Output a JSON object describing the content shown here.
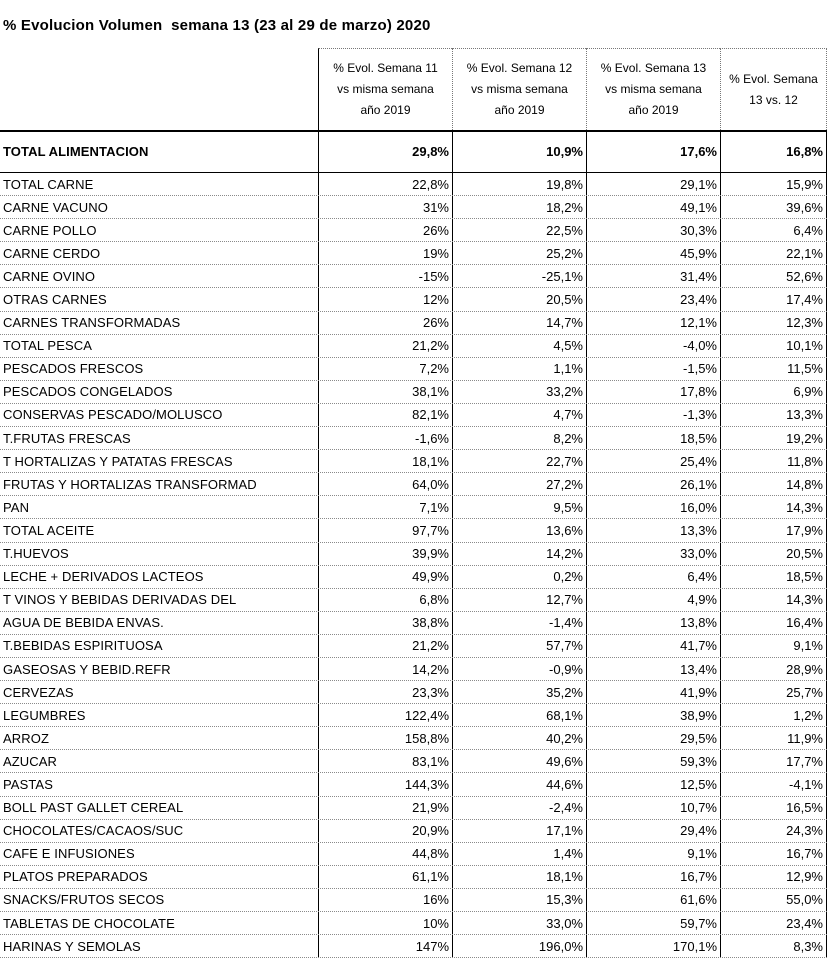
{
  "title": "% Evolucion Volumen  semana 13 (23 al 29 de marzo) 2020",
  "columns": [
    "% Evol. Semana 11\nvs misma semana\naño 2019",
    "% Evol. Semana 12\nvs misma semana\naño 2019",
    "% Evol. Semana 13\nvs misma semana\naño 2019",
    "% Evol. Semana\n13 vs. 12"
  ],
  "total": {
    "name": "TOTAL ALIMENTACION",
    "values": [
      "29,8%",
      "10,9%",
      "17,6%",
      "16,8%"
    ]
  },
  "rows": [
    {
      "name": "TOTAL CARNE",
      "values": [
        "22,8%",
        "19,8%",
        "29,1%",
        "15,9%"
      ]
    },
    {
      "name": "CARNE VACUNO",
      "values": [
        "31%",
        "18,2%",
        "49,1%",
        "39,6%"
      ]
    },
    {
      "name": "CARNE POLLO",
      "values": [
        "26%",
        "22,5%",
        "30,3%",
        "6,4%"
      ]
    },
    {
      "name": "CARNE CERDO",
      "values": [
        "19%",
        "25,2%",
        "45,9%",
        "22,1%"
      ]
    },
    {
      "name": "CARNE OVINO",
      "values": [
        "-15%",
        "-25,1%",
        "31,4%",
        "52,6%"
      ]
    },
    {
      "name": "OTRAS CARNES",
      "values": [
        "12%",
        "20,5%",
        "23,4%",
        "17,4%"
      ]
    },
    {
      "name": "CARNES TRANSFORMADAS",
      "values": [
        "26%",
        "14,7%",
        "12,1%",
        "12,3%"
      ]
    },
    {
      "name": "TOTAL PESCA",
      "values": [
        "21,2%",
        "4,5%",
        "-4,0%",
        "10,1%"
      ]
    },
    {
      "name": "PESCADOS FRESCOS",
      "values": [
        "7,2%",
        "1,1%",
        "-1,5%",
        "11,5%"
      ]
    },
    {
      "name": "PESCADOS CONGELADOS",
      "values": [
        "38,1%",
        "33,2%",
        "17,8%",
        "6,9%"
      ]
    },
    {
      "name": "CONSERVAS PESCADO/MOLUSCO",
      "values": [
        "82,1%",
        "4,7%",
        "-1,3%",
        "13,3%"
      ]
    },
    {
      "name": "T.FRUTAS FRESCAS",
      "values": [
        "-1,6%",
        "8,2%",
        "18,5%",
        "19,2%"
      ]
    },
    {
      "name": "T HORTALIZAS Y PATATAS FRESCAS",
      "values": [
        "18,1%",
        "22,7%",
        "25,4%",
        "11,8%"
      ]
    },
    {
      "name": "FRUTAS Y HORTALIZAS TRANSFORMAD",
      "values": [
        "64,0%",
        "27,2%",
        "26,1%",
        "14,8%"
      ]
    },
    {
      "name": "PAN",
      "values": [
        "7,1%",
        "9,5%",
        "16,0%",
        "14,3%"
      ]
    },
    {
      "name": "TOTAL ACEITE",
      "values": [
        "97,7%",
        "13,6%",
        "13,3%",
        "17,9%"
      ]
    },
    {
      "name": "T.HUEVOS",
      "values": [
        "39,9%",
        "14,2%",
        "33,0%",
        "20,5%"
      ]
    },
    {
      "name": "LECHE + DERIVADOS LACTEOS",
      "values": [
        "49,9%",
        "0,2%",
        "6,4%",
        "18,5%"
      ]
    },
    {
      "name": "T VINOS Y BEBIDAS DERIVADAS DEL",
      "values": [
        "6,8%",
        "12,7%",
        "4,9%",
        "14,3%"
      ]
    },
    {
      "name": "AGUA DE BEBIDA ENVAS.",
      "values": [
        "38,8%",
        "-1,4%",
        "13,8%",
        "16,4%"
      ]
    },
    {
      "name": "T.BEBIDAS ESPIRITUOSA",
      "values": [
        "21,2%",
        "57,7%",
        "41,7%",
        "9,1%"
      ]
    },
    {
      "name": "GASEOSAS Y BEBID.REFR",
      "values": [
        "14,2%",
        "-0,9%",
        "13,4%",
        "28,9%"
      ]
    },
    {
      "name": "CERVEZAS",
      "values": [
        "23,3%",
        "35,2%",
        "41,9%",
        "25,7%"
      ]
    },
    {
      "name": "LEGUMBRES",
      "values": [
        "122,4%",
        "68,1%",
        "38,9%",
        "1,2%"
      ]
    },
    {
      "name": "ARROZ",
      "values": [
        "158,8%",
        "40,2%",
        "29,5%",
        "11,9%"
      ]
    },
    {
      "name": "AZUCAR",
      "values": [
        "83,1%",
        "49,6%",
        "59,3%",
        "17,7%"
      ]
    },
    {
      "name": "PASTAS",
      "values": [
        "144,3%",
        "44,6%",
        "12,5%",
        "-4,1%"
      ]
    },
    {
      "name": "BOLL PAST GALLET CEREAL",
      "values": [
        "21,9%",
        "-2,4%",
        "10,7%",
        "16,5%"
      ]
    },
    {
      "name": "CHOCOLATES/CACAOS/SUC",
      "values": [
        "20,9%",
        "17,1%",
        "29,4%",
        "24,3%"
      ]
    },
    {
      "name": "CAFE E INFUSIONES",
      "values": [
        "44,8%",
        "1,4%",
        "9,1%",
        "16,7%"
      ]
    },
    {
      "name": "PLATOS PREPARADOS",
      "values": [
        "61,1%",
        "18,1%",
        "16,7%",
        "12,9%"
      ]
    },
    {
      "name": "SNACKS/FRUTOS SECOS",
      "values": [
        "16%",
        "15,3%",
        "61,6%",
        "55,0%"
      ]
    },
    {
      "name": "TABLETAS DE CHOCOLATE",
      "values": [
        "10%",
        "33,0%",
        "59,7%",
        "23,4%"
      ]
    },
    {
      "name": "HARINAS Y SEMOLAS",
      "values": [
        "147%",
        "196,0%",
        "170,1%",
        "8,3%"
      ]
    }
  ]
}
